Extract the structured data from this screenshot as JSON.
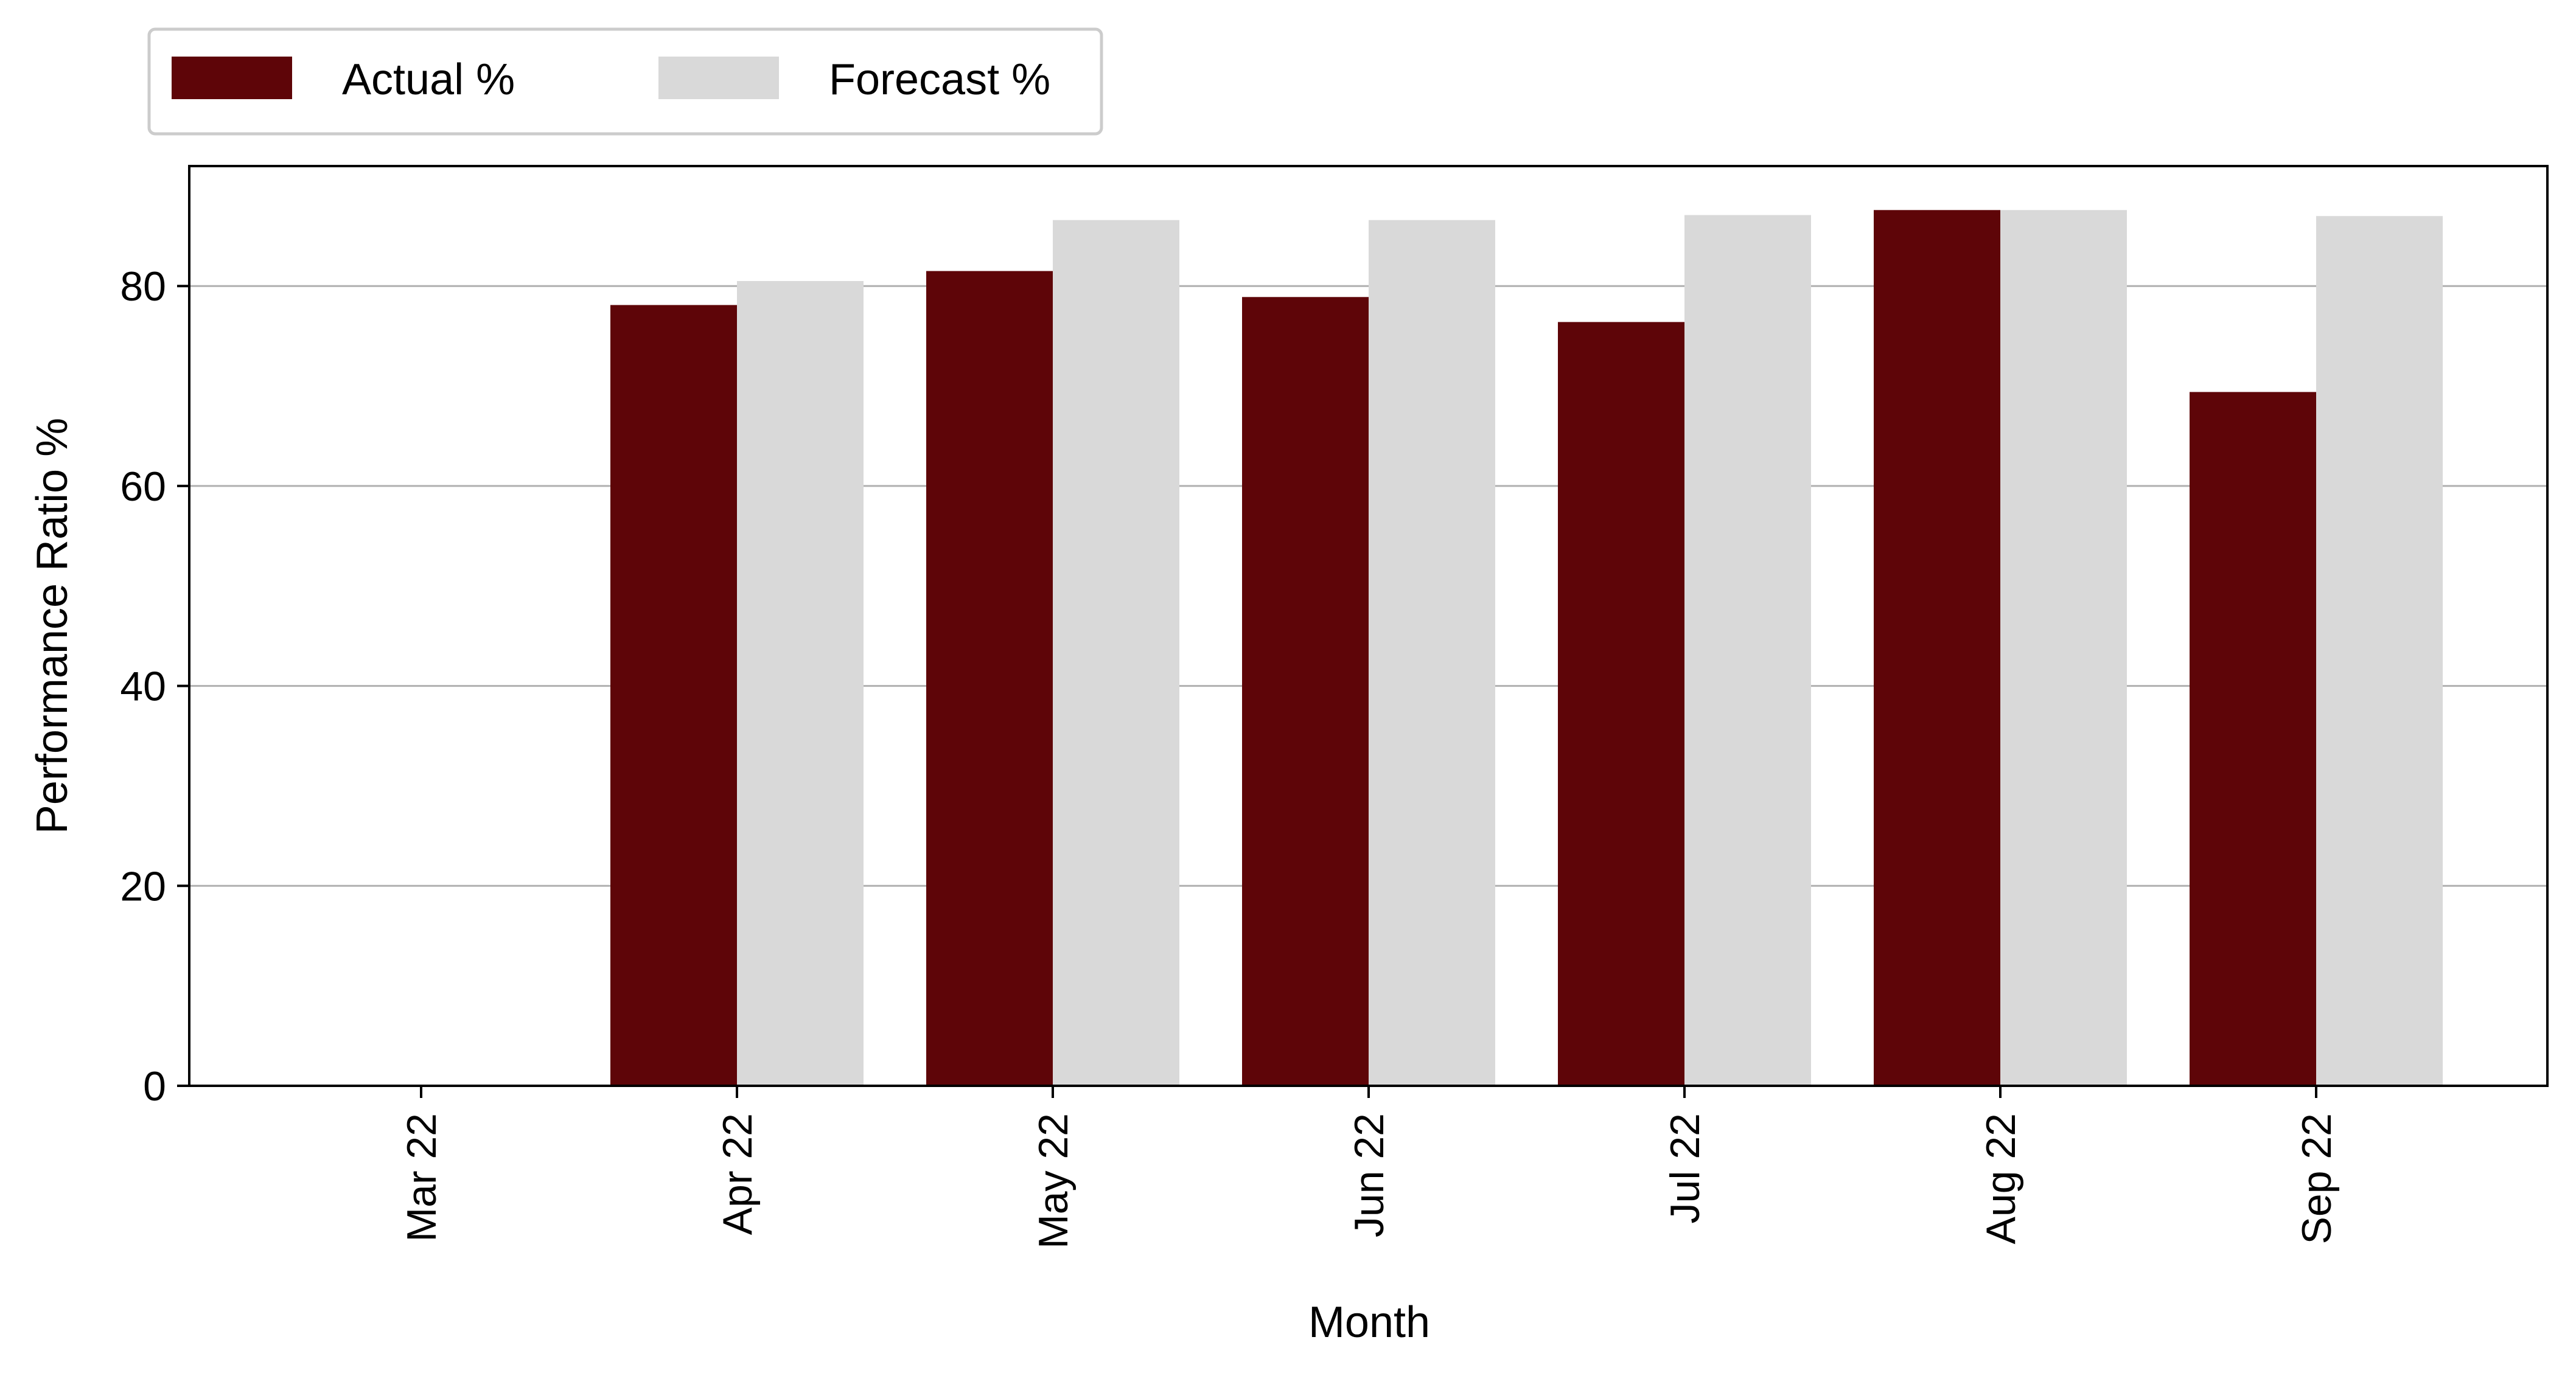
{
  "chart_data": {
    "type": "bar",
    "categories": [
      "Mar 22",
      "Apr 22",
      "May 22",
      "Jun 22",
      "Jul 22",
      "Aug 22",
      "Sep 22"
    ],
    "series": [
      {
        "name": "Actual %",
        "color": "#5e0508",
        "values": [
          0,
          78.1,
          81.5,
          78.9,
          76.4,
          87.6,
          69.4
        ]
      },
      {
        "name": "Forecast %",
        "color": "#d9d9d9",
        "values": [
          0,
          80.5,
          86.6,
          86.6,
          87.1,
          87.6,
          87.0
        ]
      }
    ],
    "xlabel": "Month",
    "ylabel": "Performance Ratio %",
    "ylim": [
      0,
      92
    ],
    "yticks": [
      0,
      20,
      40,
      60,
      80
    ],
    "grid": "horizontal",
    "legend_position": "top-left, above plot"
  }
}
